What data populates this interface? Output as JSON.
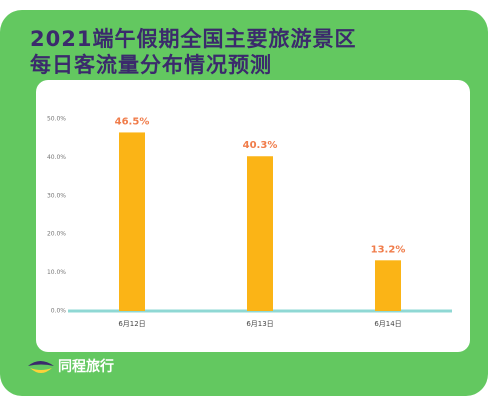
{
  "chart_data": {
    "type": "bar",
    "title": "2021端午假期全国主要旅游景区",
    "subtitle": "每日客流量分布情况预测",
    "categories": [
      "6月12日",
      "6月13日",
      "6月14日"
    ],
    "values": [
      46.5,
      40.3,
      13.2
    ],
    "value_labels": [
      "46.5%",
      "40.3%",
      "13.2%"
    ],
    "color": "#fbb416",
    "ylim": [
      0,
      50
    ],
    "yticks": [
      {
        "value": 0,
        "label": "0.0%"
      },
      {
        "value": 10,
        "label": "10.0%"
      },
      {
        "value": 20,
        "label": "20.0%"
      },
      {
        "value": 30,
        "label": "30.0%"
      },
      {
        "value": 40,
        "label": "40.0%"
      },
      {
        "value": 50,
        "label": "50.0%"
      }
    ],
    "grid": false
  },
  "brand": "同程旅行"
}
